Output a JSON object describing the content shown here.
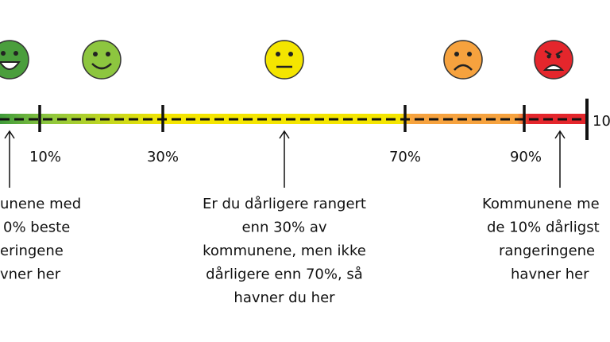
{
  "scale": {
    "ticks": [
      "10%",
      "30%",
      "70%",
      "90%",
      "10"
    ]
  },
  "notes": [
    {
      "lines": [
        "unene med",
        "0% beste",
        "eringene",
        "vner her"
      ]
    },
    {
      "lines": [
        "Er du dårligere rangert",
        "enn 30% av",
        "kommunene, men ikke",
        "dårligere enn 70%, så",
        "havner du her"
      ]
    },
    {
      "lines": [
        "Kommunene me",
        "de 10% dårligst",
        "rangeringene",
        "havner her"
      ]
    }
  ]
}
